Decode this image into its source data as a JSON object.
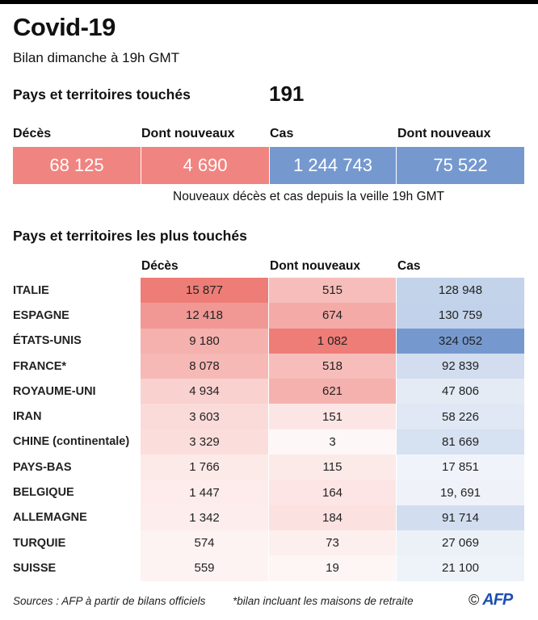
{
  "header": {
    "title": "Covid-19",
    "subtitle": "Bilan dimanche à 19h GMT",
    "countries_label": "Pays et territoires touchés",
    "countries_value": "191"
  },
  "kpis": [
    {
      "label": "Décès",
      "value": "68 125",
      "color": "#f08480"
    },
    {
      "label": "Dont nouveaux",
      "value": "4 690",
      "color": "#f08480"
    },
    {
      "label": "Cas",
      "value": "1 244 743",
      "color": "#7599cf"
    },
    {
      "label": "Dont nouveaux",
      "value": "75 522",
      "color": "#7599cf"
    }
  ],
  "kpi_note": "Nouveaux décès et cas depuis la veille 19h GMT",
  "chart_data": {
    "type": "table",
    "title": "Pays et territoires les plus touchés",
    "columns": [
      "Décès",
      "Dont nouveaux",
      "Cas"
    ],
    "rows": [
      {
        "country": "ITALIE",
        "deaths": "15 877",
        "new_deaths": "515",
        "cases": "128 948",
        "v": [
          15877,
          515,
          128948
        ]
      },
      {
        "country": "ESPAGNE",
        "deaths": "12 418",
        "new_deaths": "674",
        "cases": "130 759",
        "v": [
          12418,
          674,
          130759
        ]
      },
      {
        "country": "ÉTATS-UNIS",
        "deaths": "9 180",
        "new_deaths": "1 082",
        "cases": "324 052",
        "v": [
          9180,
          1082,
          324052
        ]
      },
      {
        "country": "FRANCE*",
        "deaths": "8 078",
        "new_deaths": "518",
        "cases": "92 839",
        "v": [
          8078,
          518,
          92839
        ]
      },
      {
        "country": "ROYAUME-UNI",
        "deaths": "4 934",
        "new_deaths": "621",
        "cases": "47 806",
        "v": [
          4934,
          621,
          47806
        ]
      },
      {
        "country": "IRAN",
        "deaths": "3 603",
        "new_deaths": "151",
        "cases": "58 226",
        "v": [
          3603,
          151,
          58226
        ]
      },
      {
        "country": "CHINE (continentale)",
        "deaths": "3 329",
        "new_deaths": "3",
        "cases": "81 669",
        "v": [
          3329,
          3,
          81669
        ]
      },
      {
        "country": "PAYS-BAS",
        "deaths": "1 766",
        "new_deaths": "115",
        "cases": "17 851",
        "v": [
          1766,
          115,
          17851
        ]
      },
      {
        "country": "BELGIQUE",
        "deaths": "1 447",
        "new_deaths": "164",
        "cases": "19, 691",
        "v": [
          1447,
          164,
          19691
        ]
      },
      {
        "country": "ALLEMAGNE",
        "deaths": "1 342",
        "new_deaths": "184",
        "cases": "91 714",
        "v": [
          1342,
          184,
          91714
        ]
      },
      {
        "country": "TURQUIE",
        "deaths": "574",
        "new_deaths": "73",
        "cases": "27 069",
        "v": [
          574,
          73,
          27069
        ]
      },
      {
        "country": "SUISSE",
        "deaths": "559",
        "new_deaths": "19",
        "cases": "21 100",
        "v": [
          559,
          19,
          21100
        ]
      }
    ]
  },
  "footer": {
    "sources": "Sources : AFP à partir de bilans officiels",
    "note": "*bilan incluant les maisons de retraite",
    "copyright": "©",
    "logo": "AFP"
  }
}
